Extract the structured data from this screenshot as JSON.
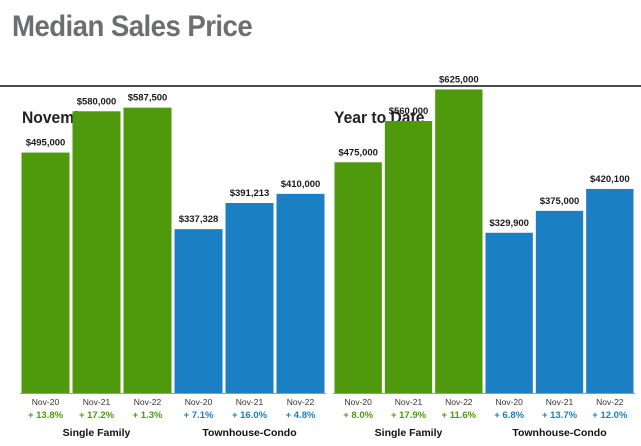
{
  "page": {
    "title": "Median Sales Price"
  },
  "colors": {
    "single_family": "#4f9a0c",
    "townhouse_condo": "#1a7fc3",
    "title": "#6d6e71"
  },
  "chart_data": [
    {
      "type": "bar",
      "title": "November",
      "categories": [
        "Nov-20",
        "Nov-21",
        "Nov-22",
        "Nov-20",
        "Nov-21",
        "Nov-22"
      ],
      "values": [
        495000,
        580000,
        587500,
        337328,
        391213,
        410000
      ],
      "value_labels": [
        "$495,000",
        "$580,000",
        "$587,500",
        "$337,328",
        "$391,213",
        "$410,000"
      ],
      "changes": [
        "+ 13.8%",
        "+ 17.2%",
        "+ 1.3%",
        "+ 7.1%",
        "+ 16.0%",
        "+ 4.8%"
      ],
      "groups": [
        {
          "name": "Single Family",
          "color": "#4f9a0c",
          "indices": [
            0,
            1,
            2
          ]
        },
        {
          "name": "Townhouse-Condo",
          "color": "#1a7fc3",
          "indices": [
            3,
            4,
            5
          ]
        }
      ],
      "ylim": [
        0,
        700000
      ],
      "grid": false
    },
    {
      "type": "bar",
      "title": "Year to Date",
      "categories": [
        "Nov-20",
        "Nov-21",
        "Nov-22",
        "Nov-20",
        "Nov-21",
        "Nov-22"
      ],
      "values": [
        475000,
        560000,
        625000,
        329900,
        375000,
        420100
      ],
      "value_labels": [
        "$475,000",
        "$560,000",
        "$625,000",
        "$329,900",
        "$375,000",
        "$420,100"
      ],
      "changes": [
        "+ 8.0%",
        "+ 17.9%",
        "+ 11.6%",
        "+ 6.8%",
        "+ 13.7%",
        "+ 12.0%"
      ],
      "groups": [
        {
          "name": "Single Family",
          "color": "#4f9a0c",
          "indices": [
            0,
            1,
            2
          ]
        },
        {
          "name": "Townhouse-Condo",
          "color": "#1a7fc3",
          "indices": [
            3,
            4,
            5
          ]
        }
      ],
      "ylim": [
        0,
        700000
      ],
      "grid": false
    }
  ]
}
